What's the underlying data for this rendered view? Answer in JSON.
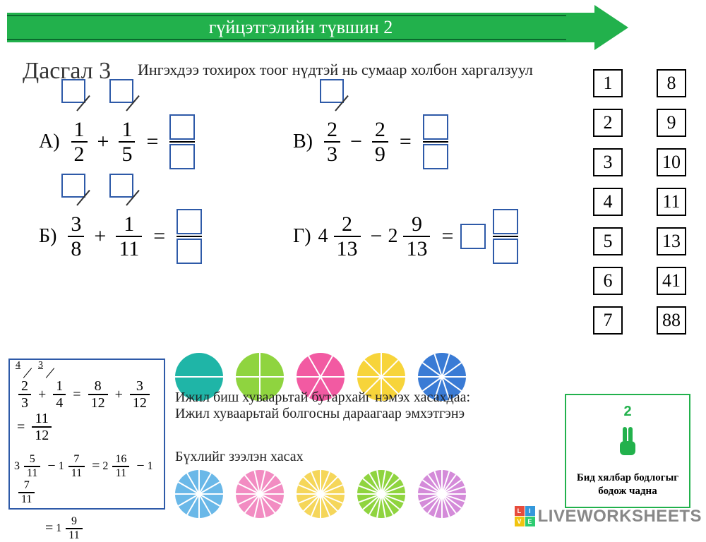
{
  "banner": {
    "text": "гүйцэтгэлийн түвшин 2",
    "bg": "#22b14c"
  },
  "title": "Дасгал 3",
  "instruction": "Ингэхдээ тохирох тоог нүдтэй нь сумаар холбон харгалзуул",
  "problems": {
    "A": {
      "label": "А)",
      "f1": {
        "n": "1",
        "d": "2"
      },
      "op": "+",
      "f2": {
        "n": "1",
        "d": "5"
      }
    },
    "B": {
      "label": "Б)",
      "f1": {
        "n": "3",
        "d": "8"
      },
      "op": "+",
      "f2": {
        "n": "1",
        "d": "11"
      }
    },
    "V": {
      "label": "В)",
      "f1": {
        "n": "2",
        "d": "3"
      },
      "op": "−",
      "f2": {
        "n": "2",
        "d": "9"
      }
    },
    "G": {
      "label": "Г)",
      "w1": "4",
      "f1": {
        "n": "2",
        "d": "13"
      },
      "op": "−",
      "w2": "2",
      "f2": {
        "n": "9",
        "d": "13"
      }
    }
  },
  "answers_col1": [
    "1",
    "2",
    "3",
    "4",
    "5",
    "6",
    "7"
  ],
  "answers_col2": [
    "8",
    "9",
    "10",
    "11",
    "13",
    "41",
    "88"
  ],
  "example": {
    "tag1": "4",
    "tag2": "3",
    "r1_f1": {
      "n": "2",
      "d": "3"
    },
    "r1_op": "+",
    "r1_f2": {
      "n": "1",
      "d": "4"
    },
    "r1_f3": {
      "n": "8",
      "d": "12"
    },
    "r1_f4": {
      "n": "3",
      "d": "12"
    },
    "r1_res": {
      "n": "11",
      "d": "12"
    },
    "r2_w1": "3",
    "r2_f1": {
      "n": "5",
      "d": "11"
    },
    "r2_op": "−",
    "r2_w2": "1",
    "r2_f2": {
      "n": "7",
      "d": "11"
    },
    "r2_w3": "2",
    "r2_f3": {
      "n": "16",
      "d": "11"
    },
    "r2_w4": "1",
    "r2_f4": {
      "n": "7",
      "d": "11"
    },
    "r2_resw": "1",
    "r2_res": {
      "n": "9",
      "d": "11"
    }
  },
  "hint1": "Ижил биш хуваарьтай бутархайг нэмэх хасахдаа:\nИжил хуваарьтай болгосны дараагаар эмхэтгэнэ",
  "hint2": "Бүхлийг зээлэн хасах",
  "circle_colors1": [
    "#1fb5a7",
    "#8fd43f",
    "#f25aa2",
    "#f7d43a",
    "#3a7bd5"
  ],
  "circle_colors2": [
    "#6ab8e8",
    "#f28cc2",
    "#f5d65a",
    "#8fd43f",
    "#d48bd9"
  ],
  "motivate": {
    "num": "2",
    "motto": "Бид хялбар бодлогыг бодож чадна"
  },
  "watermark": {
    "text": "LIVEWORKSHEETS",
    "sq_colors": [
      "#e74c3c",
      "#3498db",
      "#f1c40f",
      "#2ecc71"
    ],
    "sq_letters": [
      "L",
      "I",
      "V",
      "E"
    ]
  }
}
